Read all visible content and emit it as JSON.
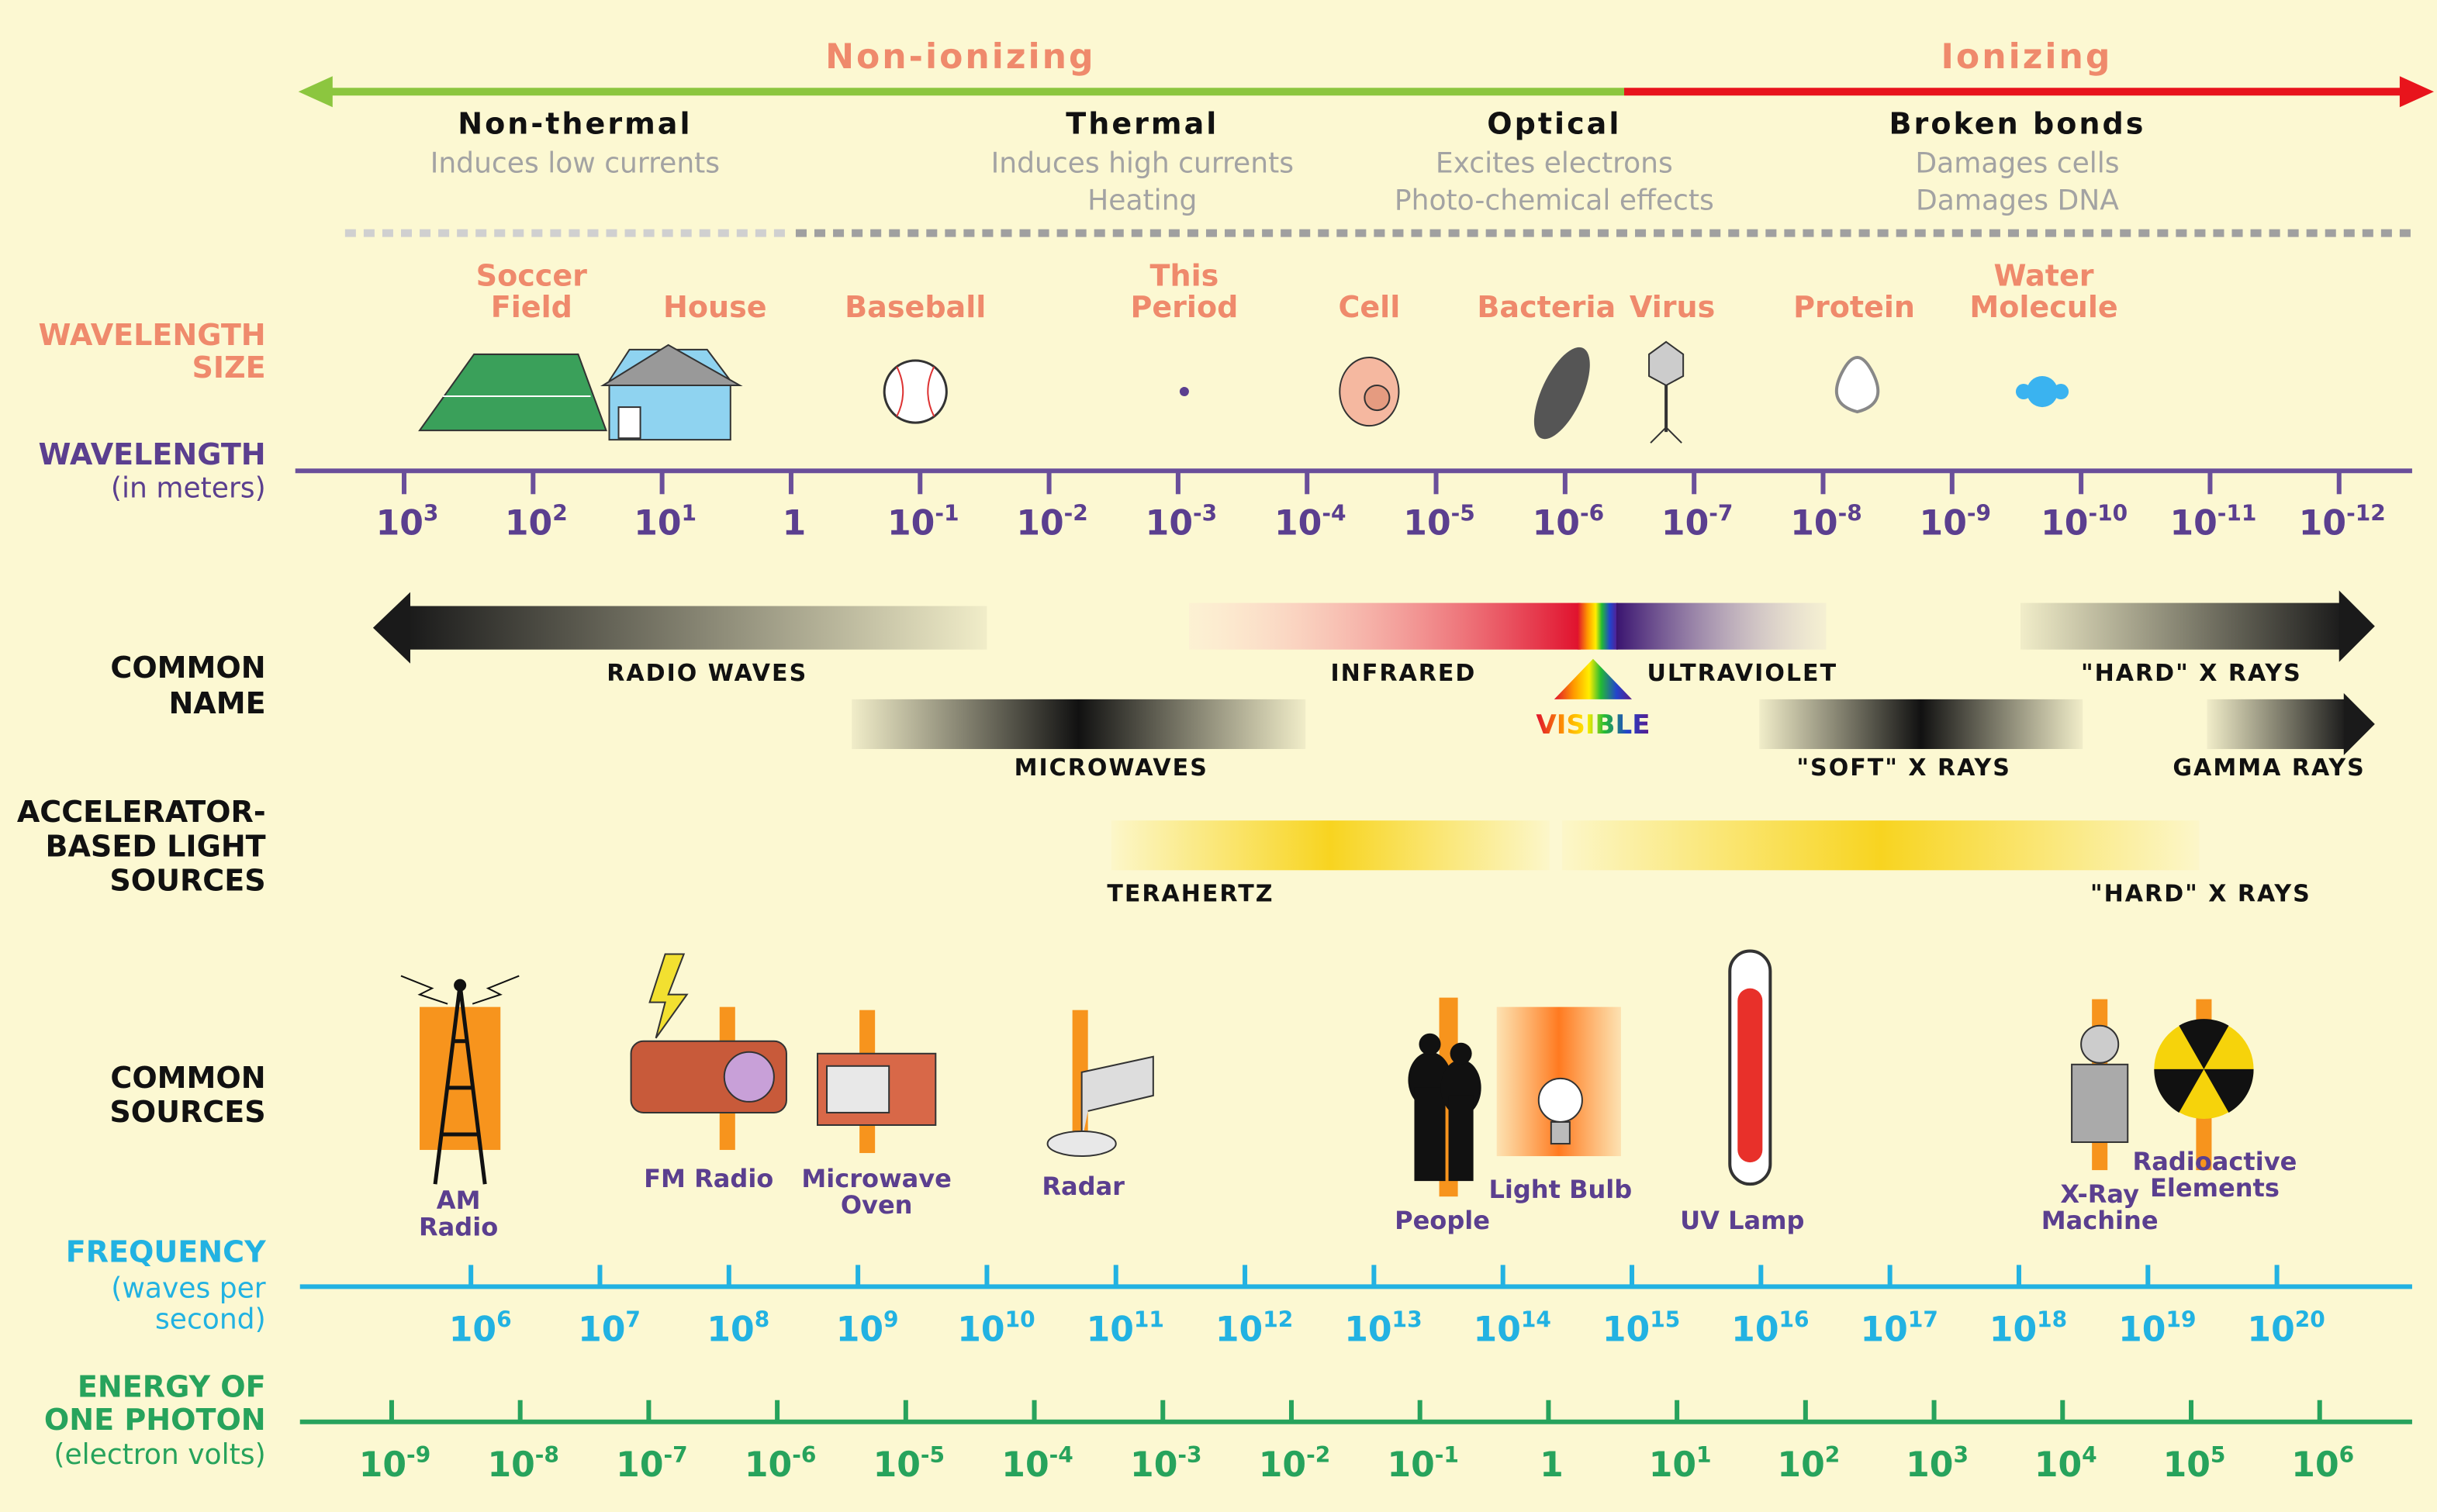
{
  "ionization": {
    "left": "Non-ionizing",
    "right": "Ionizing"
  },
  "effects": [
    {
      "title": "Non-thermal",
      "lines": [
        "Induces low currents"
      ]
    },
    {
      "title": "Thermal",
      "lines": [
        "Induces high currents",
        "Heating"
      ]
    },
    {
      "title": "Optical",
      "lines": [
        "Excites electrons",
        "Photo-chemical effects"
      ]
    },
    {
      "title": "Broken bonds",
      "lines": [
        "Damages cells",
        "Damages DNA"
      ]
    }
  ],
  "rows": {
    "wavelength_size": [
      "WAVELENGTH",
      "SIZE"
    ],
    "wavelength": "WAVELENGTH",
    "wavelength_unit": "(in meters)",
    "common_name": [
      "COMMON",
      "NAME"
    ],
    "accelerator": [
      "ACCELERATOR-",
      "BASED LIGHT",
      "SOURCES"
    ],
    "common_sources": [
      "COMMON",
      "SOURCES"
    ],
    "frequency": "FREQUENCY",
    "frequency_unit": [
      "(waves per",
      "second)"
    ],
    "energy": [
      "ENERGY OF",
      "ONE PHOTON"
    ],
    "energy_unit": "(electron volts)"
  },
  "sizes": [
    [
      "Soccer",
      "Field"
    ],
    [
      "House"
    ],
    [
      "Baseball"
    ],
    [
      "This",
      "Period"
    ],
    [
      "Cell"
    ],
    [
      "Bacteria"
    ],
    [
      "Virus"
    ],
    [
      "Protein"
    ],
    [
      "Water",
      "Molecule"
    ]
  ],
  "wavelength_ticks": [
    {
      "base": "10",
      "exp": "3"
    },
    {
      "base": "10",
      "exp": "2"
    },
    {
      "base": "10",
      "exp": "1"
    },
    {
      "base": "1"
    },
    {
      "base": "10",
      "exp": "-1"
    },
    {
      "base": "10",
      "exp": "-2"
    },
    {
      "base": "10",
      "exp": "-3"
    },
    {
      "base": "10",
      "exp": "-4"
    },
    {
      "base": "10",
      "exp": "-5"
    },
    {
      "base": "10",
      "exp": "-6"
    },
    {
      "base": "10",
      "exp": "-7"
    },
    {
      "base": "10",
      "exp": "-8"
    },
    {
      "base": "10",
      "exp": "-9"
    },
    {
      "base": "10",
      "exp": "-10"
    },
    {
      "base": "10",
      "exp": "-11"
    },
    {
      "base": "10",
      "exp": "-12"
    }
  ],
  "names": [
    "RADIO WAVES",
    "INFRARED",
    "ULTRAVIOLET",
    "\"HARD\" X RAYS",
    "VISIBLE",
    "MICROWAVES",
    "\"SOFT\" X RAYS",
    "GAMMA RAYS"
  ],
  "accelerator_names": [
    "TERAHERTZ",
    "\"HARD\" X RAYS"
  ],
  "sources": [
    [
      "AM",
      "Radio"
    ],
    [
      "FM Radio"
    ],
    [
      "Microwave",
      "Oven"
    ],
    [
      "Radar"
    ],
    [
      "People"
    ],
    [
      "Light Bulb"
    ],
    [
      "UV Lamp"
    ],
    [
      "X-Ray",
      "Machine"
    ],
    [
      "Radioactive",
      "Elements"
    ]
  ],
  "frequency_ticks": [
    {
      "base": "10",
      "exp": "6"
    },
    {
      "base": "10",
      "exp": "7"
    },
    {
      "base": "10",
      "exp": "8"
    },
    {
      "base": "10",
      "exp": "9"
    },
    {
      "base": "10",
      "exp": "10"
    },
    {
      "base": "10",
      "exp": "11"
    },
    {
      "base": "10",
      "exp": "12"
    },
    {
      "base": "10",
      "exp": "13"
    },
    {
      "base": "10",
      "exp": "14"
    },
    {
      "base": "10",
      "exp": "15"
    },
    {
      "base": "10",
      "exp": "16"
    },
    {
      "base": "10",
      "exp": "17"
    },
    {
      "base": "10",
      "exp": "18"
    },
    {
      "base": "10",
      "exp": "19"
    },
    {
      "base": "10",
      "exp": "20"
    }
  ],
  "energy_ticks": [
    {
      "base": "10",
      "exp": "-9"
    },
    {
      "base": "10",
      "exp": "-8"
    },
    {
      "base": "10",
      "exp": "-7"
    },
    {
      "base": "10",
      "exp": "-6"
    },
    {
      "base": "10",
      "exp": "-5"
    },
    {
      "base": "10",
      "exp": "-4"
    },
    {
      "base": "10",
      "exp": "-3"
    },
    {
      "base": "10",
      "exp": "-2"
    },
    {
      "base": "10",
      "exp": "-1"
    },
    {
      "base": "1"
    },
    {
      "base": "10",
      "exp": "1"
    },
    {
      "base": "10",
      "exp": "2"
    },
    {
      "base": "10",
      "exp": "3"
    },
    {
      "base": "10",
      "exp": "4"
    },
    {
      "base": "10",
      "exp": "5"
    },
    {
      "base": "10",
      "exp": "6"
    }
  ]
}
